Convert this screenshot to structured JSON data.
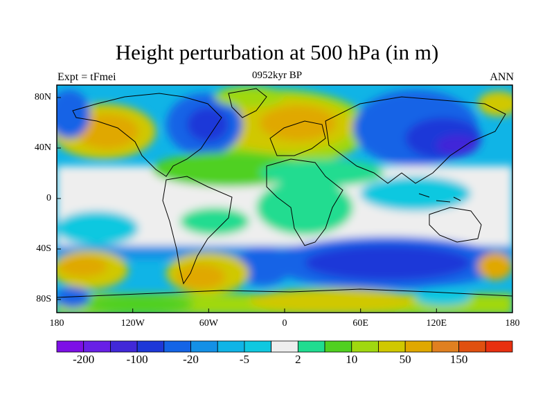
{
  "title": "Height perturbation at 500 hPa (in m)",
  "left_label": "Expt = tFmei",
  "center_label": "0952kyr BP",
  "right_label": "ANN",
  "lat_labels": [
    "80N",
    "40N",
    "0",
    "40S",
    "80S"
  ],
  "lon_labels": [
    "180",
    "120W",
    "60W",
    "0",
    "60E",
    "120E",
    "180"
  ],
  "colorbar": {
    "colors": [
      "#7d10e6",
      "#6820e6",
      "#4128d8",
      "#1e38d8",
      "#1464e6",
      "#1490e6",
      "#10b4e6",
      "#10c8e0",
      "#eeeeee",
      "#20dc90",
      "#50d020",
      "#a0d810",
      "#d0c800",
      "#e0a800",
      "#e08020",
      "#e05010",
      "#e83010"
    ],
    "labels": [
      "-200",
      "-100",
      "-20",
      "-5",
      "2",
      "10",
      "50",
      "150"
    ]
  },
  "legend_colors": {
    "land_outline": "#000000",
    "frame": "#000000"
  }
}
